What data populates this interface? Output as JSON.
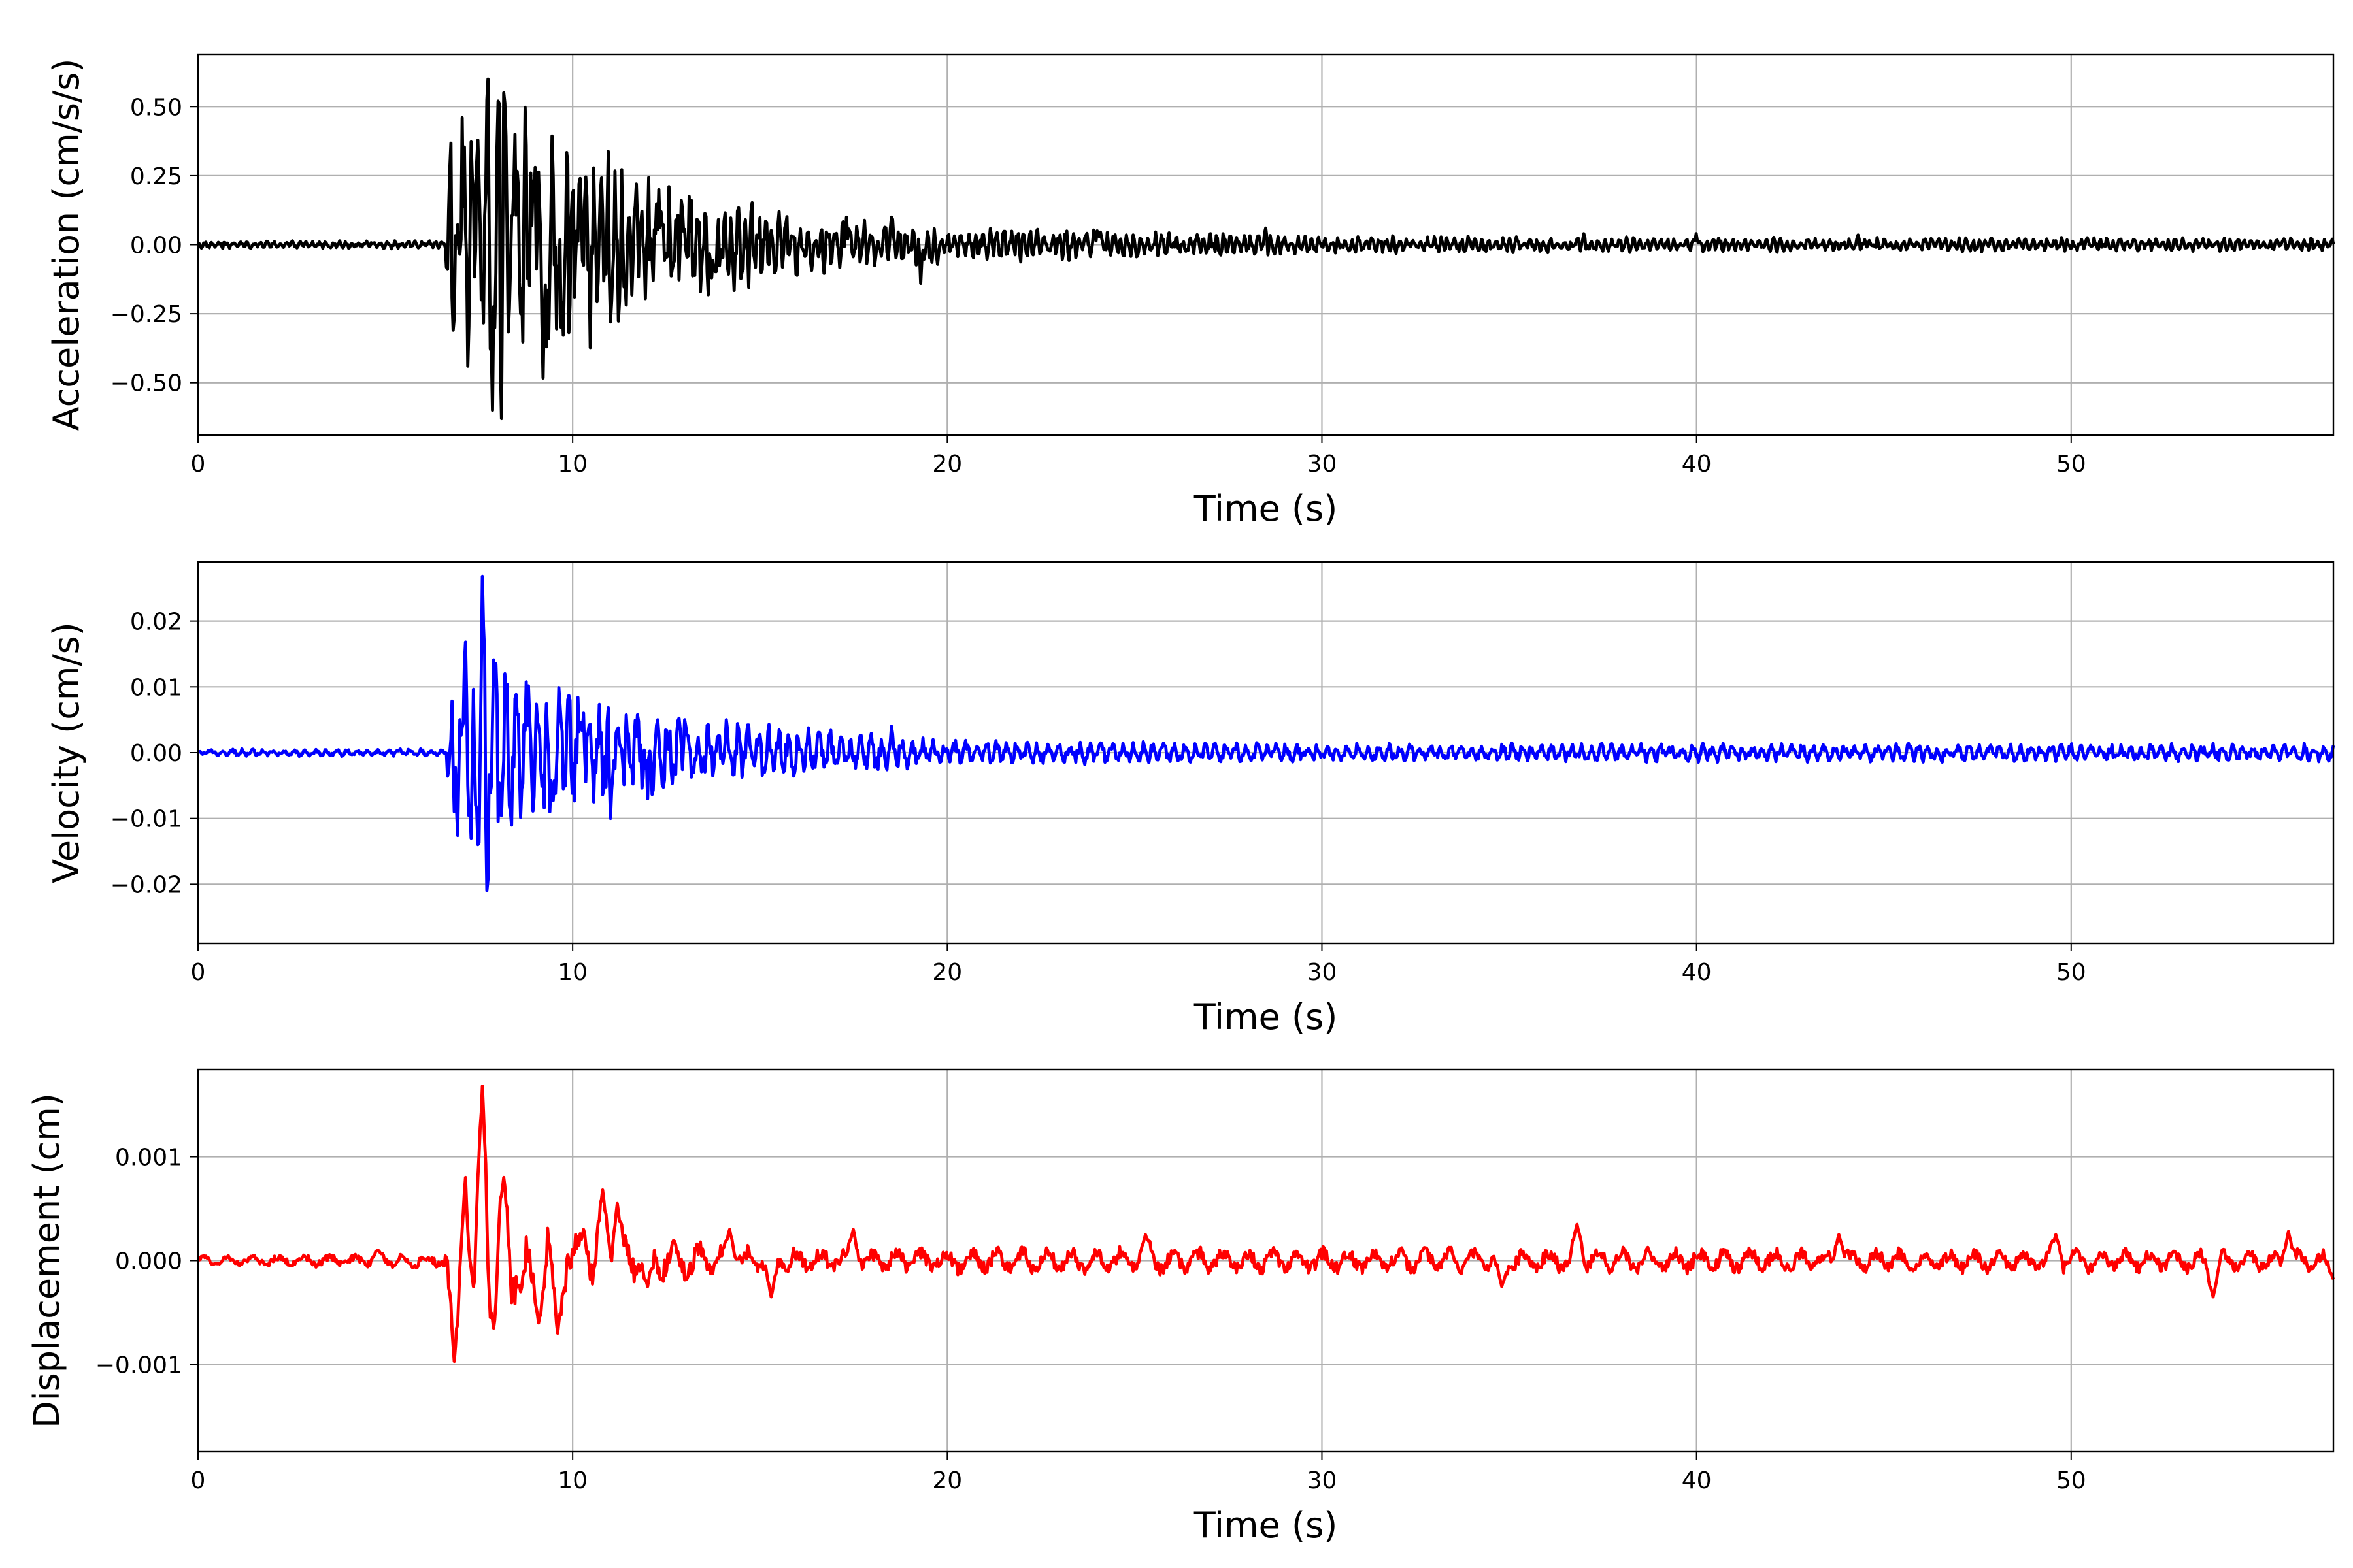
{
  "chart_data": [
    {
      "type": "line",
      "xlabel": "Time (s)",
      "ylabel": "Acceleration (cm/s/s)",
      "xlim": [
        0,
        57
      ],
      "ylim": [
        -0.69,
        0.69
      ],
      "xticks": [
        0,
        10,
        20,
        30,
        40,
        50
      ],
      "xtick_labels": [
        "0",
        "10",
        "20",
        "30",
        "40",
        "50"
      ],
      "yticks": [
        0.5,
        0.25,
        0.0,
        -0.25,
        -0.5
      ],
      "ytick_labels": [
        "0.50",
        "0.25",
        "0.00",
        "−0.25",
        "−0.50"
      ],
      "grid": true,
      "color": "#000000",
      "envelope": [
        [
          0,
          0.015
        ],
        [
          6.6,
          0.015
        ],
        [
          6.8,
          0.6
        ],
        [
          8.0,
          0.6
        ],
        [
          12,
          0.25
        ],
        [
          16,
          0.12
        ],
        [
          20,
          0.07
        ],
        [
          30,
          0.035
        ],
        [
          40,
          0.028
        ],
        [
          57,
          0.025
        ]
      ],
      "peaks": [
        [
          6.9,
          0.0
        ],
        [
          7.05,
          0.46
        ],
        [
          7.2,
          -0.44
        ],
        [
          7.45,
          0.3
        ],
        [
          7.55,
          -0.2
        ],
        [
          7.75,
          0.6
        ],
        [
          7.85,
          -0.6
        ],
        [
          8.0,
          0.52
        ],
        [
          8.1,
          -0.63
        ],
        [
          8.15,
          0.55
        ],
        [
          8.45,
          0.4
        ],
        [
          8.6,
          -0.25
        ],
        [
          9.0,
          0.28
        ],
        [
          9.3,
          -0.37
        ],
        [
          9.7,
          -0.3
        ],
        [
          10.2,
          0.24
        ],
        [
          11.0,
          -0.28
        ],
        [
          11.7,
          0.22
        ],
        [
          12.3,
          0.2
        ],
        [
          12.9,
          0.16
        ],
        [
          13.7,
          -0.12
        ],
        [
          15.5,
          0.12
        ],
        [
          17.3,
          0.1
        ],
        [
          18.5,
          0.1
        ],
        [
          19.3,
          -0.14
        ],
        [
          24.0,
          0.05
        ],
        [
          28.5,
          0.06
        ],
        [
          37.0,
          0.04
        ],
        [
          40.0,
          0.04
        ],
        [
          44.3,
          0.035
        ]
      ]
    },
    {
      "type": "line",
      "xlabel": "Time (s)",
      "ylabel": "Velocity (cm/s)",
      "xlim": [
        0,
        57
      ],
      "ylim": [
        -0.029,
        0.029
      ],
      "xticks": [
        0,
        10,
        20,
        30,
        40,
        50
      ],
      "xtick_labels": [
        "0",
        "10",
        "20",
        "30",
        "40",
        "50"
      ],
      "yticks": [
        0.02,
        0.01,
        0.0,
        -0.01,
        -0.02
      ],
      "ytick_labels": [
        "0.02",
        "0.01",
        "0.00",
        "−0.01",
        "−0.02"
      ],
      "grid": true,
      "color": "#0000ff",
      "envelope": [
        [
          0,
          0.0006
        ],
        [
          6.6,
          0.0006
        ],
        [
          6.8,
          0.012
        ],
        [
          7.6,
          0.026
        ],
        [
          8.5,
          0.012
        ],
        [
          11,
          0.008
        ],
        [
          14,
          0.005
        ],
        [
          18,
          0.003
        ],
        [
          20,
          0.002
        ],
        [
          30,
          0.0015
        ],
        [
          57,
          0.0015
        ]
      ],
      "peaks": [
        [
          6.85,
          -0.009
        ],
        [
          7.0,
          0.005
        ],
        [
          7.15,
          0.0168
        ],
        [
          7.3,
          -0.013
        ],
        [
          7.6,
          0.0268
        ],
        [
          7.7,
          -0.021
        ],
        [
          7.95,
          0.0135
        ],
        [
          8.3,
          -0.008
        ],
        [
          9.4,
          -0.009
        ],
        [
          10.3,
          0.006
        ],
        [
          11.0,
          -0.01
        ],
        [
          12.0,
          -0.007
        ],
        [
          13.0,
          0.005
        ],
        [
          14.1,
          0.005
        ],
        [
          18.5,
          0.004
        ]
      ]
    },
    {
      "type": "line",
      "xlabel": "Time (s)",
      "ylabel": "Displacement (cm)",
      "xlim": [
        0,
        57
      ],
      "ylim": [
        -0.00184,
        0.00184
      ],
      "xticks": [
        0,
        10,
        20,
        30,
        40,
        50
      ],
      "xtick_labels": [
        "0",
        "10",
        "20",
        "30",
        "40",
        "50"
      ],
      "yticks": [
        0.001,
        0.0,
        -0.001
      ],
      "ytick_labels": [
        "0.001",
        "0.000",
        "−0.001"
      ],
      "grid": true,
      "color": "#ff0000",
      "envelope": [
        [
          0,
          5e-05
        ],
        [
          6.5,
          8e-05
        ],
        [
          6.8,
          0.0004
        ],
        [
          7.6,
          0.0006
        ],
        [
          10,
          0.0003
        ],
        [
          15,
          0.00015
        ],
        [
          57,
          0.00012
        ]
      ],
      "peaks": [
        [
          0.5,
          -3e-05
        ],
        [
          4.8,
          0.0001
        ],
        [
          6.85,
          -0.00097
        ],
        [
          7.15,
          0.0008
        ],
        [
          7.35,
          -0.00025
        ],
        [
          7.6,
          0.00168
        ],
        [
          7.9,
          -0.00065
        ],
        [
          8.15,
          0.0008
        ],
        [
          8.6,
          -0.0003
        ],
        [
          9.1,
          -0.0006
        ],
        [
          9.6,
          -0.0007
        ],
        [
          10.3,
          0.0003
        ],
        [
          10.8,
          0.00068
        ],
        [
          11.2,
          0.00055
        ],
        [
          12.0,
          -0.00025
        ],
        [
          14.2,
          0.0003
        ],
        [
          15.3,
          -0.00035
        ],
        [
          17.5,
          0.0003
        ],
        [
          25.3,
          0.00025
        ],
        [
          34.8,
          -0.00025
        ],
        [
          36.8,
          0.00035
        ],
        [
          43.8,
          0.00025
        ],
        [
          49.6,
          0.00025
        ],
        [
          53.8,
          -0.00035
        ],
        [
          55.8,
          0.00028
        ],
        [
          57.0,
          -0.00018
        ]
      ]
    }
  ]
}
